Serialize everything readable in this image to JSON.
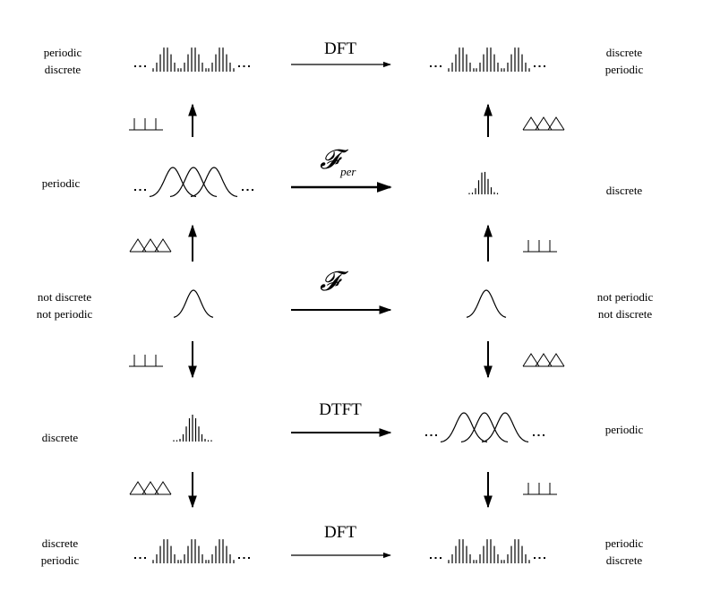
{
  "rows": [
    {
      "left_label": [
        "periodic",
        "discrete"
      ],
      "right_label": [
        "discrete",
        "periodic"
      ],
      "transform": "DFT"
    },
    {
      "left_label": [
        "periodic"
      ],
      "right_label": [
        "discrete"
      ],
      "transform_symbol": "𝓕",
      "transform_subscript": "per"
    },
    {
      "left_label": [
        "not discrete",
        "not periodic"
      ],
      "right_label": [
        "not periodic",
        "not discrete"
      ],
      "transform_symbol": "𝓕"
    },
    {
      "left_label": [
        "discrete"
      ],
      "right_label": [
        "periodic"
      ],
      "transform": "DTFT"
    },
    {
      "left_label": [
        "discrete",
        "periodic"
      ],
      "right_label": [
        "periodic",
        "discrete"
      ],
      "transform": "DFT"
    }
  ],
  "operations": {
    "sampling_icon": "impulse-comb-icon",
    "periodization_icon": "overlapping-triangles-icon"
  }
}
